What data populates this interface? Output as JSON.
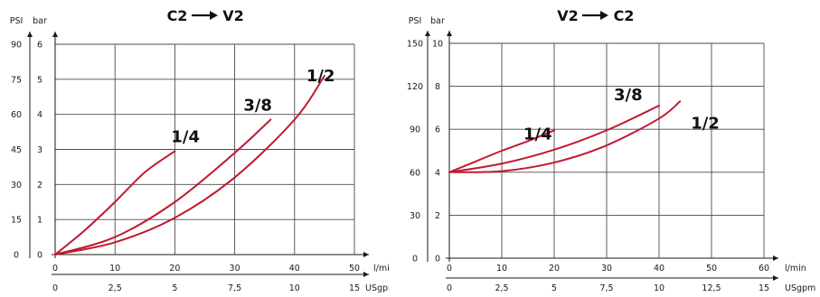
{
  "colors": {
    "series": "#c0192f",
    "axis": "#1a1a1a",
    "grid": "#4a4a4a"
  },
  "chart_data": [
    {
      "type": "line",
      "title_from": "C2",
      "title_to": "V2",
      "xlabel": "l/min",
      "x2label": "USgpm",
      "ylabel": "bar",
      "y2label": "PSI",
      "xlim": [
        0,
        50
      ],
      "ylim": [
        0,
        6
      ],
      "x_ticks": [
        "0",
        "10",
        "20",
        "30",
        "40",
        "50"
      ],
      "x2_ticks": [
        "0",
        "2,5",
        "5",
        "7,5",
        "10",
        "15"
      ],
      "y_ticks": [
        "0",
        "1",
        "2",
        "3",
        "4",
        "5",
        "6"
      ],
      "y2_ticks": [
        "0",
        "15",
        "30",
        "45",
        "60",
        "75",
        "90"
      ],
      "grid": true,
      "series": [
        {
          "name": "1/4",
          "x": [
            0,
            5,
            10,
            15,
            20
          ],
          "y": [
            0,
            0.7,
            1.5,
            2.35,
            2.95
          ]
        },
        {
          "name": "3/8",
          "x": [
            0,
            10,
            20,
            30,
            36
          ],
          "y": [
            0,
            0.5,
            1.5,
            2.9,
            3.85
          ]
        },
        {
          "name": "1/2",
          "x": [
            0,
            10,
            20,
            30,
            40,
            45
          ],
          "y": [
            0,
            0.35,
            1.05,
            2.2,
            3.85,
            5.1
          ]
        }
      ]
    },
    {
      "type": "line",
      "title_from": "V2",
      "title_to": "C2",
      "xlabel": "l/min",
      "x2label": "USgpm",
      "ylabel": "bar",
      "y2label": "PSI",
      "xlim": [
        0,
        60
      ],
      "ylim": [
        0,
        10
      ],
      "x_ticks": [
        "0",
        "10",
        "20",
        "30",
        "40",
        "50",
        "60"
      ],
      "x2_ticks": [
        "0",
        "2,5",
        "5",
        "7,5",
        "10",
        "12,5",
        "15"
      ],
      "y_ticks": [
        "0",
        "2",
        "4",
        "6",
        "8",
        "10"
      ],
      "y2_ticks": [
        "0",
        "30",
        "60",
        "90",
        "120",
        "150"
      ],
      "grid": true,
      "series": [
        {
          "name": "1/4",
          "x": [
            0,
            5,
            10,
            15,
            20
          ],
          "y": [
            4,
            4.5,
            5,
            5.45,
            5.95
          ]
        },
        {
          "name": "3/8",
          "x": [
            0,
            10,
            20,
            30,
            40
          ],
          "y": [
            4,
            4.4,
            5.05,
            5.95,
            7.1
          ]
        },
        {
          "name": "1/2",
          "x": [
            0,
            10,
            20,
            30,
            40,
            44
          ],
          "y": [
            4,
            4.05,
            4.45,
            5.25,
            6.5,
            7.3
          ]
        }
      ]
    }
  ]
}
